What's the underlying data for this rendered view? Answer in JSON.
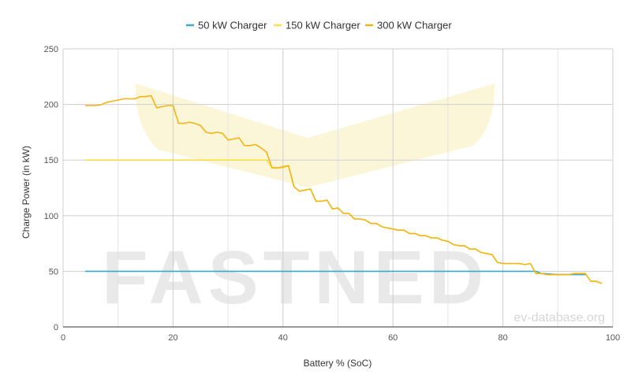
{
  "chart_data": {
    "type": "line",
    "xlabel": "Battery % (SoC)",
    "ylabel": "Charge Power (in kW)",
    "xlim": [
      0,
      100
    ],
    "ylim": [
      0,
      250
    ],
    "x_ticks": [
      0,
      20,
      40,
      60,
      80,
      100
    ],
    "y_ticks": [
      0,
      50,
      100,
      150,
      200,
      250
    ],
    "grid": true,
    "legend_position": "top-center",
    "watermark": "FASTNED",
    "watermark_url": "ev-database.org",
    "series": [
      {
        "name": "50 kW Charger",
        "color": "#3ba9c9",
        "x": [
          4,
          86,
          87,
          90,
          92,
          95
        ],
        "y": [
          50,
          50,
          48,
          47,
          47,
          47
        ]
      },
      {
        "name": "150 kW Charger",
        "color": "#f5e04a",
        "x": [
          4,
          37,
          38,
          40,
          41,
          42,
          43,
          44,
          45,
          46,
          47,
          48,
          49,
          50,
          51,
          52,
          53,
          54,
          55,
          56,
          57,
          58,
          59,
          60,
          61,
          62,
          63,
          64,
          65,
          66,
          67,
          68,
          69,
          70,
          71,
          72,
          73,
          74,
          75,
          76,
          77,
          78,
          79,
          80,
          81,
          82,
          83,
          84,
          85,
          86,
          87,
          88,
          89,
          90,
          91,
          92,
          93,
          94,
          95,
          96,
          97,
          98
        ],
        "y": [
          150,
          150,
          143,
          143,
          145,
          126,
          122,
          123,
          124,
          113,
          113,
          114,
          106,
          107,
          102,
          102,
          97,
          97,
          96,
          93,
          93,
          90,
          89,
          88,
          87,
          87,
          84,
          84,
          82,
          82,
          80,
          80,
          78,
          77,
          74,
          73,
          73,
          70,
          70,
          67,
          66,
          65,
          58,
          57,
          57,
          57,
          57,
          56,
          57,
          48,
          48,
          47,
          47,
          47,
          47,
          47,
          48,
          48,
          48,
          41,
          41,
          39
        ]
      },
      {
        "name": "300 kW Charger",
        "color": "#f3b514",
        "x": [
          4,
          5,
          6,
          7,
          8,
          9,
          10,
          11,
          12,
          13,
          14,
          15,
          16,
          17,
          18,
          19,
          20,
          21,
          22,
          23,
          24,
          25,
          26,
          27,
          28,
          29,
          30,
          31,
          32,
          33,
          34,
          35,
          36,
          37,
          38,
          39,
          40,
          41,
          42,
          43,
          44,
          45,
          46,
          47,
          48,
          49,
          50,
          51,
          52,
          53,
          54,
          55,
          56,
          57,
          58,
          59,
          60,
          61,
          62,
          63,
          64,
          65,
          66,
          67,
          68,
          69,
          70,
          71,
          72,
          73,
          74,
          75,
          76,
          77,
          78,
          79,
          80,
          81,
          82,
          83,
          84,
          85,
          86,
          87,
          88,
          89,
          90,
          91,
          92,
          93,
          94,
          95,
          96,
          97,
          98
        ],
        "y": [
          199,
          199,
          199,
          200,
          202,
          203,
          204,
          205,
          205,
          205,
          207,
          207,
          208,
          197,
          198,
          199,
          199,
          183,
          183,
          184,
          183,
          181,
          175,
          174,
          175,
          174,
          168,
          169,
          170,
          163,
          163,
          164,
          161,
          157,
          143,
          143,
          144,
          145,
          126,
          122,
          123,
          124,
          113,
          113,
          114,
          106,
          107,
          102,
          102,
          97,
          97,
          96,
          93,
          93,
          90,
          89,
          88,
          87,
          87,
          84,
          84,
          82,
          82,
          80,
          80,
          78,
          77,
          74,
          73,
          73,
          70,
          70,
          67,
          66,
          65,
          58,
          57,
          57,
          57,
          57,
          56,
          57,
          48,
          48,
          47,
          47,
          47,
          47,
          47,
          48,
          48,
          48,
          41,
          41,
          39
        ]
      }
    ]
  }
}
